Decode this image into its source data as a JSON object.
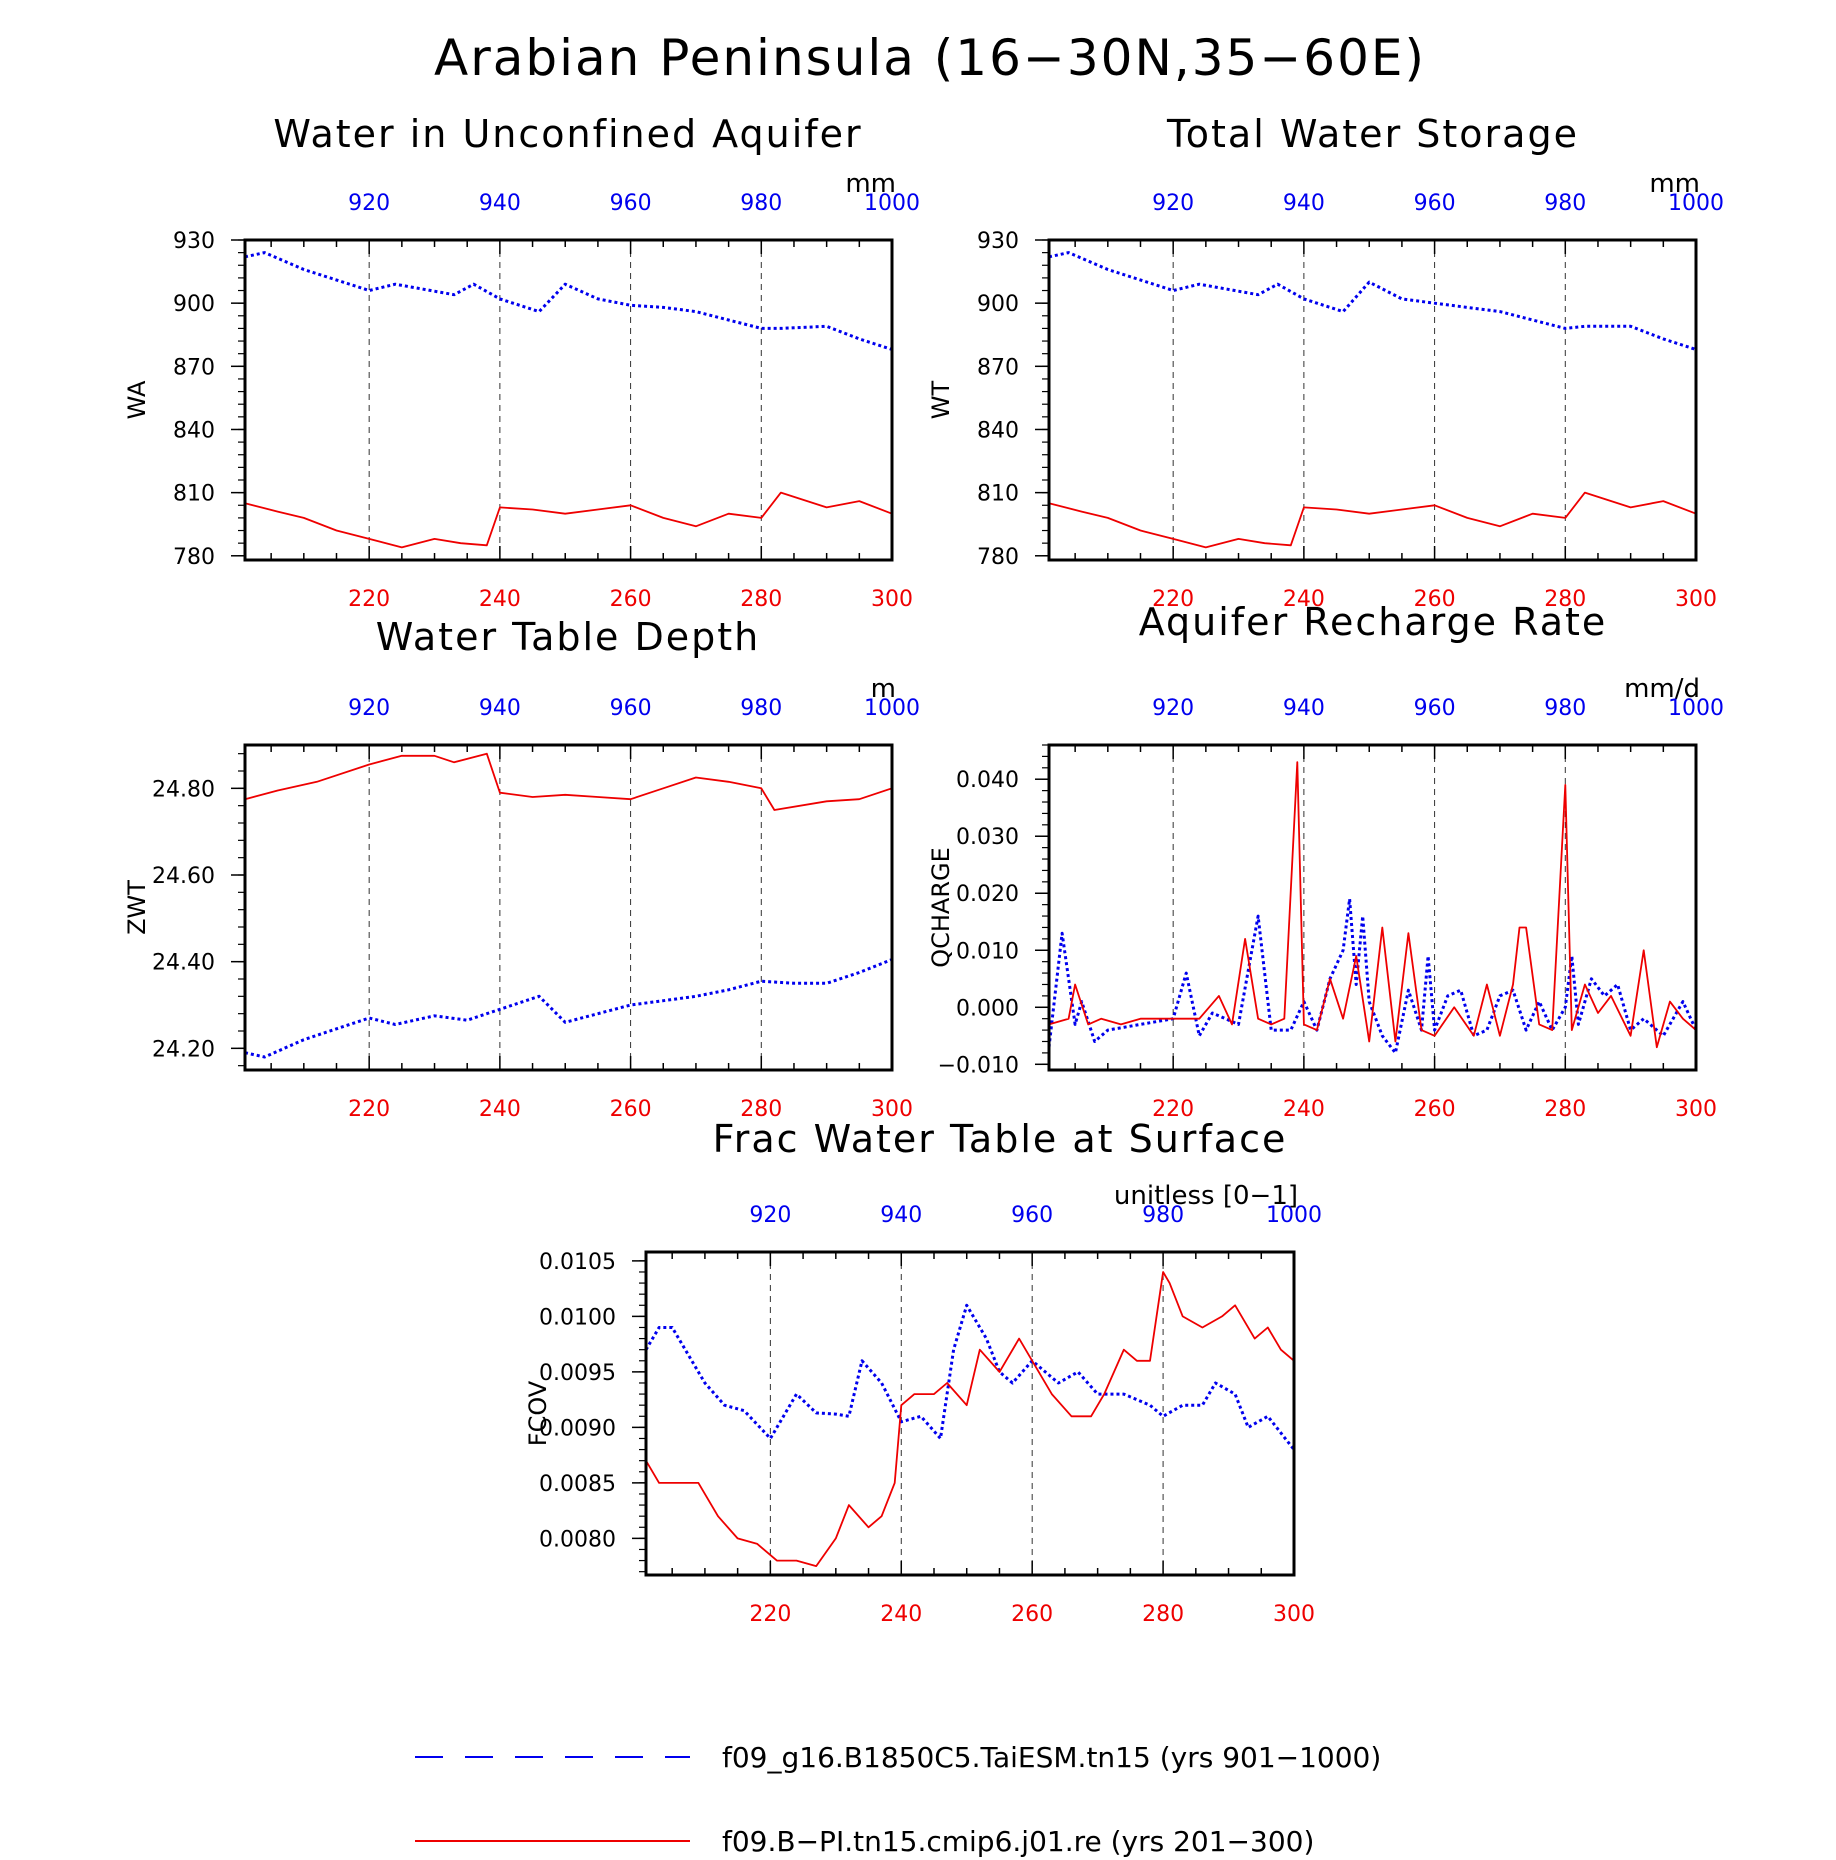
{
  "title": "Arabian Peninsula (16−30N,35−60E)",
  "colors": {
    "series1": "#0000ee",
    "series2": "#ee0000",
    "axis": "#000000"
  },
  "legend": [
    {
      "label": "f09_g16.B1850C5.TaiESM.tn15 (yrs 901−1000)",
      "style": "dashed",
      "color": "#0000ee"
    },
    {
      "label": "f09.B−PI.tn15.cmip6.j01.re (yrs 201−300)",
      "style": "solid",
      "color": "#ee0000"
    }
  ],
  "chart_data": [
    {
      "type": "line",
      "title": "Water in Unconfined Aquifer",
      "units": "mm",
      "ylabel": "WA",
      "ylim": [
        778,
        930
      ],
      "yticks": [
        "930",
        "900",
        "870",
        "840",
        "810",
        "780"
      ],
      "ytick_values": [
        930,
        900,
        870,
        840,
        810,
        780
      ],
      "x_top": {
        "ticks": [
          "920",
          "940",
          "960",
          "980",
          "1000"
        ],
        "range": [
          901,
          1000
        ]
      },
      "x_bottom": {
        "ticks": [
          "220",
          "240",
          "260",
          "280",
          "300"
        ],
        "range": [
          201,
          300
        ]
      },
      "grid": "vertical dashed",
      "series": [
        {
          "axis": "top",
          "style": "dotted",
          "color": "#0000ee",
          "x": [
            901,
            904,
            910,
            920,
            924,
            933,
            936,
            940,
            946,
            950,
            955,
            960,
            965,
            970,
            975,
            980,
            983,
            990,
            995,
            1000
          ],
          "y": [
            922,
            924,
            916,
            906,
            909,
            904,
            909,
            902,
            896,
            909,
            902,
            899,
            898,
            896,
            892,
            888,
            888,
            889,
            883,
            878
          ]
        },
        {
          "axis": "bottom",
          "style": "solid",
          "color": "#ee0000",
          "x": [
            201,
            206,
            210,
            215,
            220,
            225,
            230,
            234,
            238,
            240,
            245,
            250,
            255,
            260,
            265,
            270,
            275,
            280,
            283,
            290,
            295,
            300
          ],
          "y": [
            805,
            801,
            798,
            792,
            788,
            784,
            788,
            786,
            785,
            803,
            802,
            800,
            802,
            804,
            798,
            794,
            800,
            798,
            810,
            803,
            806,
            800
          ]
        }
      ]
    },
    {
      "type": "line",
      "title": "Total Water Storage",
      "units": "mm",
      "ylabel": "WT",
      "ylim": [
        778,
        930
      ],
      "yticks": [
        "930",
        "900",
        "870",
        "840",
        "810",
        "780"
      ],
      "ytick_values": [
        930,
        900,
        870,
        840,
        810,
        780
      ],
      "x_top": {
        "ticks": [
          "920",
          "940",
          "960",
          "980",
          "1000"
        ],
        "range": [
          901,
          1000
        ]
      },
      "x_bottom": {
        "ticks": [
          "220",
          "240",
          "260",
          "280",
          "300"
        ],
        "range": [
          201,
          300
        ]
      },
      "grid": "vertical dashed",
      "series": [
        {
          "axis": "top",
          "style": "dotted",
          "color": "#0000ee",
          "x": [
            901,
            904,
            910,
            920,
            924,
            933,
            936,
            940,
            946,
            950,
            955,
            960,
            965,
            970,
            975,
            980,
            983,
            990,
            995,
            1000
          ],
          "y": [
            922,
            924,
            916,
            906,
            909,
            904,
            909,
            902,
            896,
            910,
            902,
            900,
            898,
            896,
            892,
            888,
            889,
            889,
            883,
            878
          ]
        },
        {
          "axis": "bottom",
          "style": "solid",
          "color": "#ee0000",
          "x": [
            201,
            206,
            210,
            215,
            220,
            225,
            230,
            234,
            238,
            240,
            245,
            250,
            255,
            260,
            265,
            270,
            275,
            280,
            283,
            290,
            295,
            300
          ],
          "y": [
            805,
            801,
            798,
            792,
            788,
            784,
            788,
            786,
            785,
            803,
            802,
            800,
            802,
            804,
            798,
            794,
            800,
            798,
            810,
            803,
            806,
            800
          ]
        }
      ]
    },
    {
      "type": "line",
      "title": "Water Table Depth",
      "units": "m",
      "ylabel": "ZWT",
      "ylim": [
        24.15,
        24.9
      ],
      "yticks": [
        "24.80",
        "24.60",
        "24.40",
        "24.20"
      ],
      "ytick_values": [
        24.8,
        24.6,
        24.4,
        24.2
      ],
      "x_top": {
        "ticks": [
          "920",
          "940",
          "960",
          "980",
          "1000"
        ],
        "range": [
          901,
          1000
        ]
      },
      "x_bottom": {
        "ticks": [
          "220",
          "240",
          "260",
          "280",
          "300"
        ],
        "range": [
          201,
          300
        ]
      },
      "grid": "vertical dashed",
      "series": [
        {
          "axis": "top",
          "style": "dotted",
          "color": "#0000ee",
          "x": [
            901,
            904,
            910,
            915,
            920,
            924,
            930,
            935,
            940,
            946,
            950,
            955,
            960,
            965,
            970,
            975,
            980,
            985,
            990,
            995,
            1000
          ],
          "y": [
            24.19,
            24.18,
            24.22,
            24.245,
            24.27,
            24.255,
            24.275,
            24.265,
            24.29,
            24.32,
            24.26,
            24.28,
            24.3,
            24.31,
            24.32,
            24.335,
            24.355,
            24.35,
            24.35,
            24.375,
            24.405
          ]
        },
        {
          "axis": "bottom",
          "style": "solid",
          "color": "#ee0000",
          "x": [
            201,
            206,
            212,
            220,
            225,
            230,
            233,
            238,
            240,
            245,
            250,
            255,
            260,
            265,
            270,
            275,
            280,
            282,
            290,
            295,
            300
          ],
          "y": [
            24.775,
            24.795,
            24.815,
            24.855,
            24.875,
            24.875,
            24.86,
            24.88,
            24.79,
            24.78,
            24.785,
            24.78,
            24.775,
            24.8,
            24.825,
            24.815,
            24.8,
            24.75,
            24.77,
            24.775,
            24.8
          ]
        }
      ]
    },
    {
      "type": "line",
      "title": "Aquifer Recharge Rate",
      "units": "mm/d",
      "ylabel": "QCHARGE",
      "ylim": [
        -0.011,
        0.046
      ],
      "yticks": [
        "0.040",
        "0.030",
        "0.020",
        "0.010",
        "0.000",
        "−0.010"
      ],
      "ytick_values": [
        0.04,
        0.03,
        0.02,
        0.01,
        0.0,
        -0.01
      ],
      "x_top": {
        "ticks": [
          "920",
          "940",
          "960",
          "980",
          "1000"
        ],
        "range": [
          901,
          1000
        ]
      },
      "x_bottom": {
        "ticks": [
          "220",
          "240",
          "260",
          "280",
          "300"
        ],
        "range": [
          201,
          300
        ]
      },
      "grid": "vertical dashed",
      "series": [
        {
          "axis": "top",
          "style": "dotted",
          "color": "#0000ee",
          "x": [
            901,
            903,
            905,
            906,
            908,
            910,
            915,
            920,
            922,
            924,
            926,
            930,
            933,
            935,
            938,
            940,
            942,
            944,
            946,
            947,
            948,
            949,
            950,
            952,
            954,
            956,
            958,
            959,
            960,
            962,
            964,
            966,
            968,
            970,
            972,
            974,
            976,
            978,
            980,
            981,
            982,
            984,
            986,
            988,
            990,
            992,
            995,
            998,
            1000
          ],
          "y": [
            -0.007,
            0.013,
            -0.003,
            0.001,
            -0.006,
            -0.004,
            -0.003,
            -0.002,
            0.006,
            -0.005,
            -0.001,
            -0.003,
            0.016,
            -0.004,
            -0.004,
            0.001,
            -0.004,
            0.005,
            0.01,
            0.019,
            0.004,
            0.016,
            0.001,
            -0.005,
            -0.008,
            0.003,
            -0.004,
            0.009,
            -0.004,
            0.002,
            0.003,
            -0.005,
            -0.004,
            0.002,
            0.003,
            -0.004,
            0.001,
            -0.004,
            0.0,
            0.009,
            -0.003,
            0.005,
            0.002,
            0.004,
            -0.004,
            -0.002,
            -0.005,
            0.001,
            -0.004
          ]
        },
        {
          "axis": "bottom",
          "style": "solid",
          "color": "#ee0000",
          "x": [
            201,
            204,
            205,
            207,
            209,
            212,
            215,
            218,
            221,
            224,
            227,
            229,
            231,
            233,
            235,
            237,
            239,
            240,
            242,
            244,
            246,
            248,
            250,
            252,
            254,
            256,
            258,
            260,
            263,
            266,
            268,
            270,
            272,
            273,
            274,
            276,
            278,
            280,
            281,
            283,
            285,
            287,
            290,
            292,
            294,
            296,
            298,
            300
          ],
          "y": [
            -0.003,
            -0.002,
            0.004,
            -0.003,
            -0.002,
            -0.003,
            -0.002,
            -0.002,
            -0.002,
            -0.002,
            0.002,
            -0.003,
            0.012,
            -0.002,
            -0.003,
            -0.002,
            0.043,
            -0.003,
            -0.004,
            0.005,
            -0.002,
            0.009,
            -0.006,
            0.014,
            -0.006,
            0.013,
            -0.004,
            -0.005,
            0.0,
            -0.005,
            0.004,
            -0.005,
            0.004,
            0.014,
            0.014,
            -0.003,
            -0.004,
            0.039,
            -0.004,
            0.004,
            -0.001,
            0.002,
            -0.005,
            0.01,
            -0.007,
            0.001,
            -0.002,
            -0.004
          ]
        }
      ]
    },
    {
      "type": "line",
      "title": "Frac Water Table at Surface",
      "units": "unitless [0−1]",
      "ylabel": "FCOV",
      "ylim": [
        0.00767,
        0.01058
      ],
      "yticks": [
        "0.0105",
        "0.0100",
        "0.0095",
        "0.0090",
        "0.0085",
        "0.0080"
      ],
      "ytick_values": [
        0.0105,
        0.01,
        0.0095,
        0.009,
        0.0085,
        0.008
      ],
      "x_top": {
        "ticks": [
          "920",
          "940",
          "960",
          "980",
          "1000"
        ],
        "range": [
          901,
          1000
        ]
      },
      "x_bottom": {
        "ticks": [
          "220",
          "240",
          "260",
          "280",
          "300"
        ],
        "range": [
          201,
          300
        ]
      },
      "grid": "vertical dashed",
      "series": [
        {
          "axis": "top",
          "style": "dotted",
          "color": "#0000ee",
          "x": [
            901,
            903,
            905,
            907,
            910,
            913,
            916,
            920,
            924,
            927,
            930,
            932,
            934,
            937,
            940,
            943,
            946,
            948,
            950,
            953,
            955,
            957,
            960,
            964,
            967,
            970,
            974,
            978,
            980,
            983,
            986,
            988,
            991,
            993,
            996,
            1000
          ],
          "y": [
            0.0097,
            0.0099,
            0.0099,
            0.0097,
            0.0094,
            0.0092,
            0.00915,
            0.0089,
            0.0093,
            0.00913,
            0.00912,
            0.0091,
            0.0096,
            0.0094,
            0.00905,
            0.0091,
            0.0089,
            0.0097,
            0.0101,
            0.0098,
            0.0095,
            0.0094,
            0.0096,
            0.0094,
            0.0095,
            0.0093,
            0.0093,
            0.0092,
            0.0091,
            0.0092,
            0.0092,
            0.0094,
            0.0093,
            0.009,
            0.0091,
            0.0088
          ]
        },
        {
          "axis": "bottom",
          "style": "solid",
          "color": "#ee0000",
          "x": [
            201,
            203,
            205,
            207,
            209,
            212,
            215,
            218,
            221,
            224,
            227,
            230,
            232,
            235,
            237,
            239,
            240,
            242,
            245,
            247,
            250,
            252,
            255,
            258,
            260,
            263,
            266,
            269,
            271,
            274,
            276,
            278,
            280,
            281,
            283,
            286,
            289,
            291,
            294,
            296,
            298,
            300
          ],
          "y": [
            0.0087,
            0.0085,
            0.0085,
            0.0085,
            0.0085,
            0.0082,
            0.008,
            0.00795,
            0.0078,
            0.0078,
            0.00775,
            0.008,
            0.0083,
            0.0081,
            0.0082,
            0.0085,
            0.0092,
            0.0093,
            0.0093,
            0.0094,
            0.0092,
            0.0097,
            0.0095,
            0.0098,
            0.0096,
            0.0093,
            0.0091,
            0.0091,
            0.0093,
            0.0097,
            0.0096,
            0.0096,
            0.0104,
            0.0103,
            0.01,
            0.0099,
            0.01,
            0.0101,
            0.0098,
            0.0099,
            0.0097,
            0.0096
          ]
        }
      ]
    }
  ]
}
